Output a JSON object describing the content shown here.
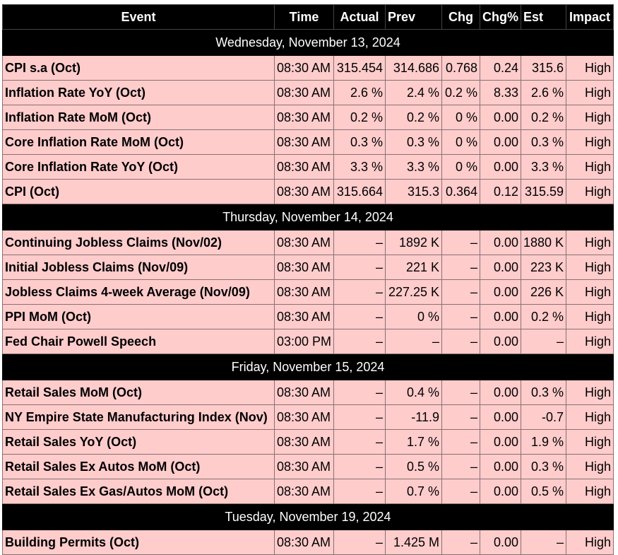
{
  "headers": {
    "event": "Event",
    "time": "Time",
    "actual": "Actual",
    "prev": "Prev",
    "chg": "Chg",
    "chg_pct": "Chg%",
    "est": "Est",
    "impact": "Impact"
  },
  "groups": [
    {
      "date": "Wednesday, November 13, 2024",
      "rows": [
        {
          "event": "CPI s.a (Oct)",
          "time": "08:30 AM",
          "actual": "315.454",
          "prev": "314.686",
          "chg": "0.768",
          "chg_pct": "0.24",
          "est": "315.6",
          "impact": "High"
        },
        {
          "event": "Inflation Rate YoY (Oct)",
          "time": "08:30 AM",
          "actual": "2.6 %",
          "prev": "2.4 %",
          "chg": "0.2 %",
          "chg_pct": "8.33",
          "est": "2.6 %",
          "impact": "High"
        },
        {
          "event": "Inflation Rate MoM (Oct)",
          "time": "08:30 AM",
          "actual": "0.2 %",
          "prev": "0.2 %",
          "chg": "0 %",
          "chg_pct": "0.00",
          "est": "0.2 %",
          "impact": "High"
        },
        {
          "event": "Core Inflation Rate MoM (Oct)",
          "time": "08:30 AM",
          "actual": "0.3 %",
          "prev": "0.3 %",
          "chg": "0 %",
          "chg_pct": "0.00",
          "est": "0.3 %",
          "impact": "High"
        },
        {
          "event": "Core Inflation Rate YoY (Oct)",
          "time": "08:30 AM",
          "actual": "3.3 %",
          "prev": "3.3 %",
          "chg": "0 %",
          "chg_pct": "0.00",
          "est": "3.3 %",
          "impact": "High"
        },
        {
          "event": "CPI (Oct)",
          "time": "08:30 AM",
          "actual": "315.664",
          "prev": "315.3",
          "chg": "0.364",
          "chg_pct": "0.12",
          "est": "315.59",
          "impact": "High"
        }
      ]
    },
    {
      "date": "Thursday, November 14, 2024",
      "rows": [
        {
          "event": "Continuing Jobless Claims (Nov/02)",
          "time": "08:30 AM",
          "actual": "–",
          "prev": "1892 K",
          "chg": "–",
          "chg_pct": "0.00",
          "est": "1880 K",
          "impact": "High"
        },
        {
          "event": "Initial Jobless Claims (Nov/09)",
          "time": "08:30 AM",
          "actual": "–",
          "prev": "221 K",
          "chg": "–",
          "chg_pct": "0.00",
          "est": "223 K",
          "impact": "High"
        },
        {
          "event": "Jobless Claims 4-week Average (Nov/09)",
          "time": "08:30 AM",
          "actual": "–",
          "prev": "227.25 K",
          "chg": "–",
          "chg_pct": "0.00",
          "est": "226 K",
          "impact": "High"
        },
        {
          "event": "PPI MoM (Oct)",
          "time": "08:30 AM",
          "actual": "–",
          "prev": "0 %",
          "chg": "–",
          "chg_pct": "0.00",
          "est": "0.2 %",
          "impact": "High"
        },
        {
          "event": "Fed Chair Powell Speech",
          "time": "03:00 PM",
          "actual": "–",
          "prev": "–",
          "chg": "–",
          "chg_pct": "0.00",
          "est": "–",
          "impact": "High"
        }
      ]
    },
    {
      "date": "Friday, November 15, 2024",
      "rows": [
        {
          "event": "Retail Sales MoM (Oct)",
          "time": "08:30 AM",
          "actual": "–",
          "prev": "0.4 %",
          "chg": "–",
          "chg_pct": "0.00",
          "est": "0.3 %",
          "impact": "High"
        },
        {
          "event": "NY Empire State Manufacturing Index (Nov)",
          "time": "08:30 AM",
          "actual": "–",
          "prev": "-11.9",
          "chg": "–",
          "chg_pct": "0.00",
          "est": "-0.7",
          "impact": "High"
        },
        {
          "event": "Retail Sales YoY (Oct)",
          "time": "08:30 AM",
          "actual": "–",
          "prev": "1.7 %",
          "chg": "–",
          "chg_pct": "0.00",
          "est": "1.9 %",
          "impact": "High"
        },
        {
          "event": "Retail Sales Ex Autos MoM (Oct)",
          "time": "08:30 AM",
          "actual": "–",
          "prev": "0.5 %",
          "chg": "–",
          "chg_pct": "0.00",
          "est": "0.3 %",
          "impact": "High"
        },
        {
          "event": "Retail Sales Ex Gas/Autos MoM (Oct)",
          "time": "08:30 AM",
          "actual": "–",
          "prev": "0.7 %",
          "chg": "–",
          "chg_pct": "0.00",
          "est": "0.5 %",
          "impact": "High"
        }
      ]
    },
    {
      "date": "Tuesday, November 19, 2024",
      "rows": [
        {
          "event": "Building Permits (Oct)",
          "time": "08:30 AM",
          "actual": "–",
          "prev": "1.425 M",
          "chg": "–",
          "chg_pct": "0.00",
          "est": "–",
          "impact": "High"
        }
      ]
    }
  ],
  "colors": {
    "header_bg": "#000000",
    "header_text": "#ffffff",
    "row_bg": "#ffcccc",
    "row_text": "#000000"
  }
}
